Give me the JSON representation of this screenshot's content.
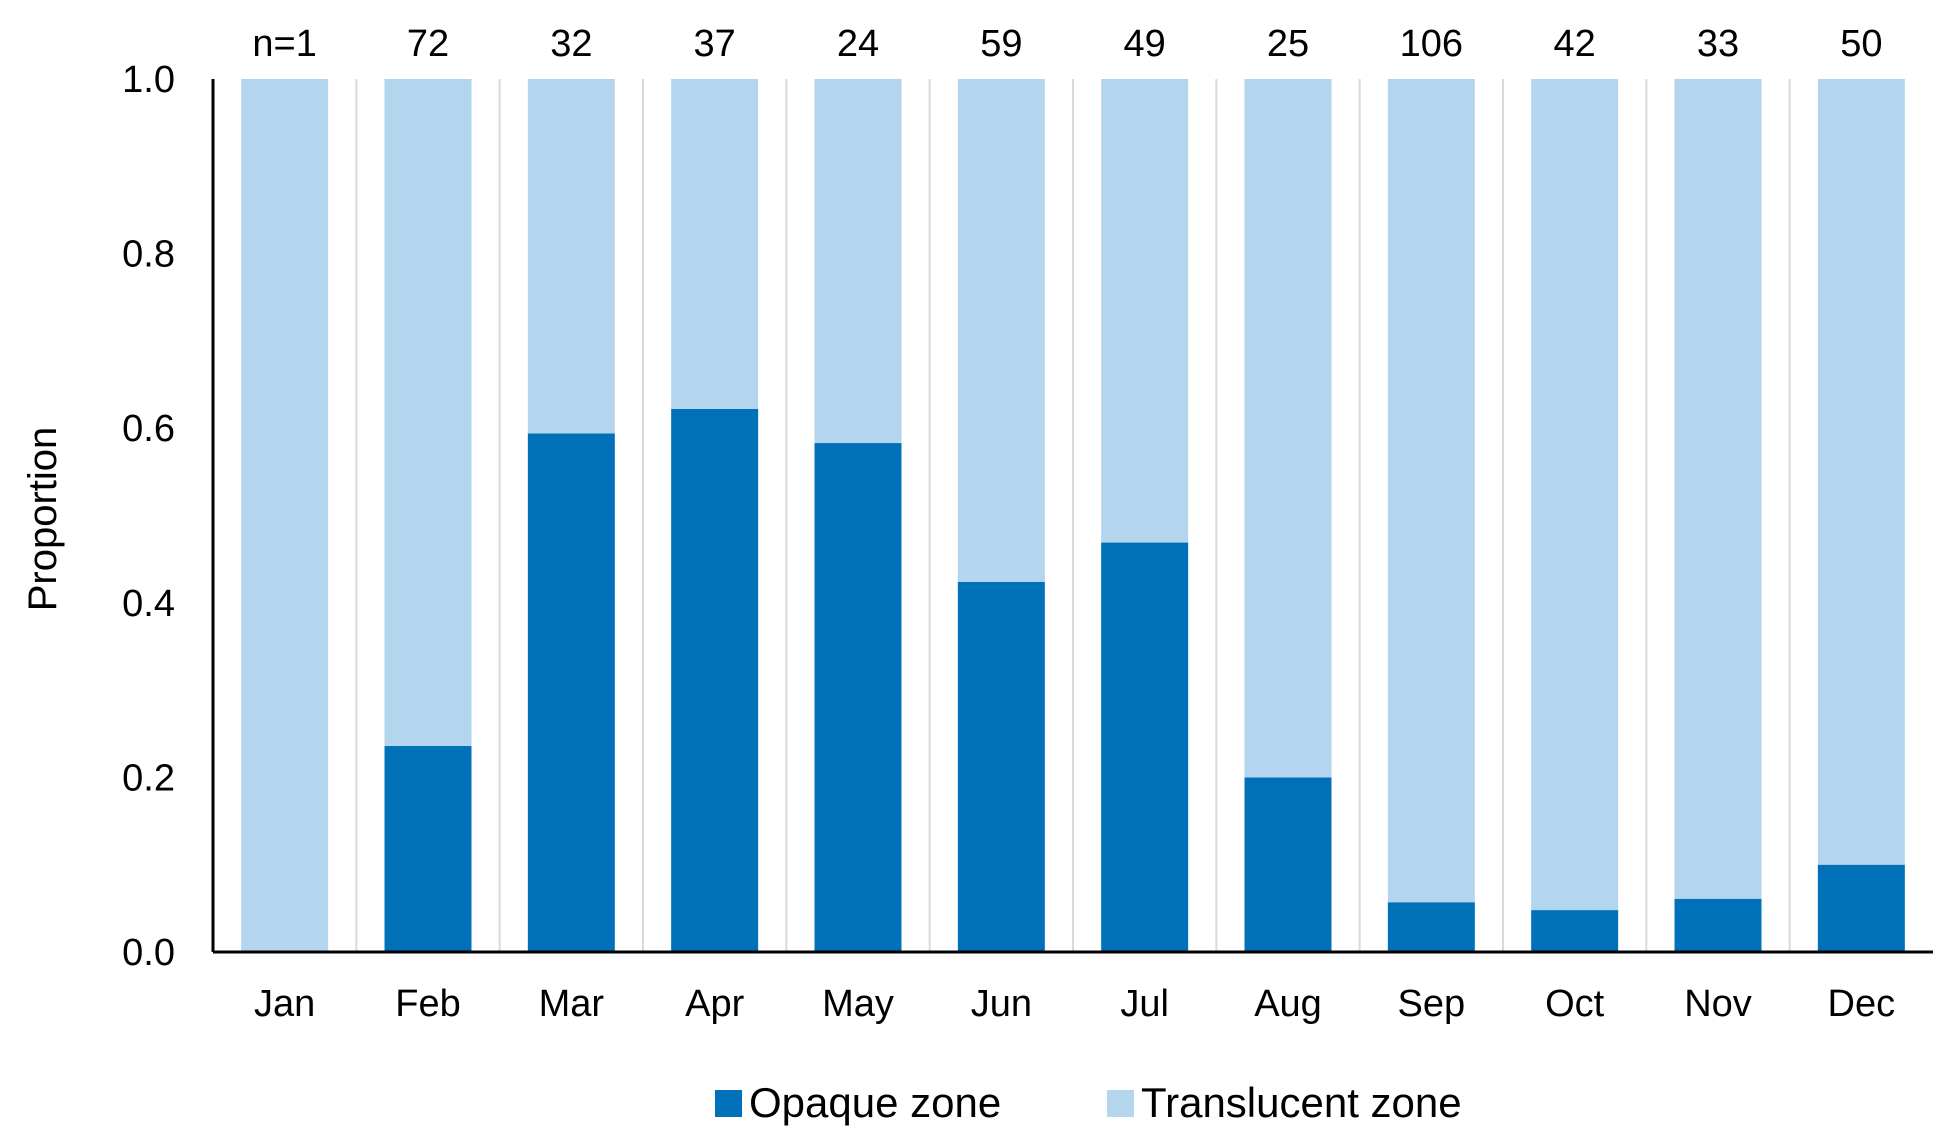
{
  "chart_data": {
    "type": "bar",
    "stacked": true,
    "normalized": true,
    "categories": [
      "Jan",
      "Feb",
      "Mar",
      "Apr",
      "May",
      "Jun",
      "Jul",
      "Aug",
      "Sep",
      "Oct",
      "Nov",
      "Dec"
    ],
    "sample_size_labels": [
      "n=1",
      "72",
      "32",
      "37",
      "24",
      "59",
      "49",
      "25",
      "106",
      "42",
      "33",
      "50"
    ],
    "series": [
      {
        "name": "Opaque zone",
        "color": "#0070b8",
        "values": [
          0.0,
          0.236,
          0.594,
          0.622,
          0.583,
          0.424,
          0.469,
          0.2,
          0.057,
          0.048,
          0.061,
          0.1
        ]
      },
      {
        "name": "Translucent zone",
        "color": "#b3d6ee",
        "values": [
          1.0,
          0.764,
          0.406,
          0.378,
          0.417,
          0.576,
          0.531,
          0.8,
          0.943,
          0.952,
          0.939,
          0.9
        ]
      }
    ],
    "title": "",
    "xlabel": "",
    "ylabel": "Proportion",
    "ylim": [
      0,
      1.0
    ],
    "yticks": [
      "0.0",
      "0.2",
      "0.4",
      "0.6",
      "0.8",
      "1.0"
    ],
    "grid": "vertical separators between months",
    "legend": "bottom-center"
  }
}
